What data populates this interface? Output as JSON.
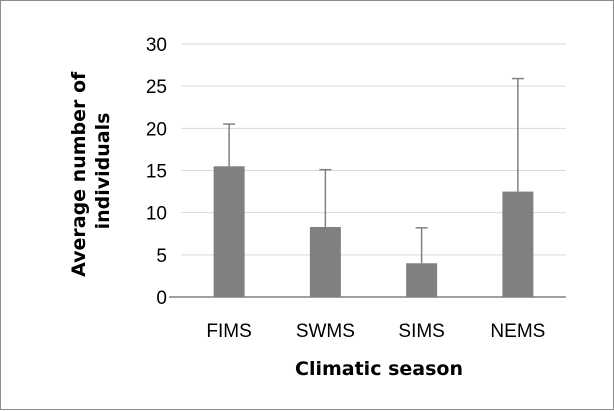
{
  "chart_data": {
    "type": "bar",
    "title": "",
    "xlabel": "Climatic season",
    "ylabel_lines": [
      "Average number of",
      "individuals"
    ],
    "categories": [
      "FIMS",
      "SWMS",
      "SIMS",
      "NEMS"
    ],
    "values": [
      15.5,
      8.3,
      4.0,
      12.5
    ],
    "error_upper": [
      20.5,
      15.1,
      8.2,
      25.9
    ],
    "ylim": [
      0,
      30
    ],
    "yticks": [
      0,
      5,
      10,
      15,
      20,
      25,
      30
    ],
    "grid": true,
    "legend": "none",
    "bar_color": "#808080",
    "error_color": "#808080",
    "grid_color": "#d9d9d9"
  }
}
